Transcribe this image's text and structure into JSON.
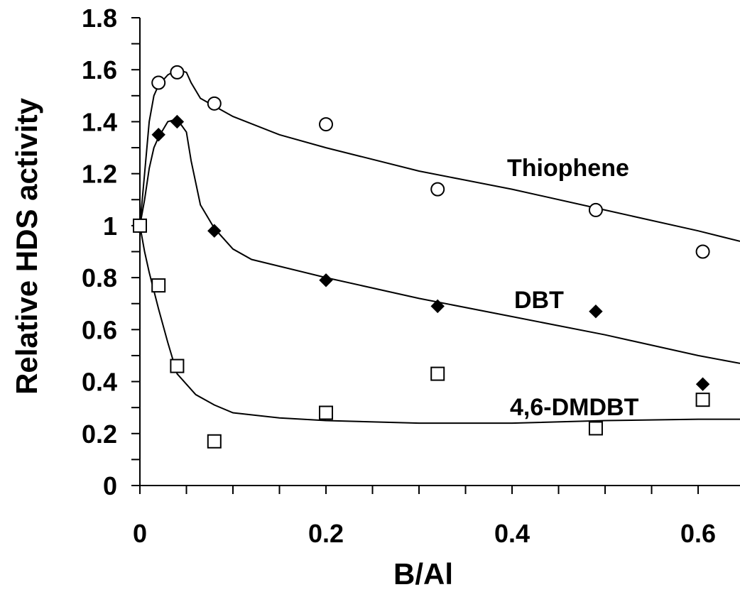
{
  "chart_data": {
    "type": "scatter",
    "xlabel": "B/Al",
    "ylabel": "Relative HDS activity",
    "xlim": [
      0,
      0.645
    ],
    "ylim": [
      0,
      1.8
    ],
    "x_ticks": [
      "0",
      "0.2",
      "0.4",
      "0.6"
    ],
    "y_ticks": [
      "0",
      "0.2",
      "0.4",
      "0.6",
      "0.8",
      "1",
      "1.2",
      "1.4",
      "1.6",
      "1.8"
    ],
    "grid": false,
    "series": [
      {
        "name": "Thiophene",
        "marker": "open-circle",
        "points": [
          [
            0.0,
            1.0
          ],
          [
            0.02,
            1.55
          ],
          [
            0.04,
            1.59
          ],
          [
            0.08,
            1.47
          ],
          [
            0.2,
            1.39
          ],
          [
            0.32,
            1.14
          ],
          [
            0.49,
            1.06
          ],
          [
            0.605,
            0.9
          ]
        ],
        "trend": [
          [
            0.0,
            1.0
          ],
          [
            0.005,
            1.2
          ],
          [
            0.01,
            1.4
          ],
          [
            0.015,
            1.5
          ],
          [
            0.02,
            1.54
          ],
          [
            0.03,
            1.58
          ],
          [
            0.04,
            1.6
          ],
          [
            0.05,
            1.59
          ],
          [
            0.055,
            1.55
          ],
          [
            0.065,
            1.49
          ],
          [
            0.08,
            1.46
          ],
          [
            0.1,
            1.42
          ],
          [
            0.15,
            1.35
          ],
          [
            0.2,
            1.3
          ],
          [
            0.3,
            1.21
          ],
          [
            0.4,
            1.14
          ],
          [
            0.5,
            1.06
          ],
          [
            0.6,
            0.98
          ],
          [
            0.645,
            0.94
          ]
        ]
      },
      {
        "name": "DBT",
        "marker": "filled-diamond",
        "points": [
          [
            0.0,
            1.0
          ],
          [
            0.02,
            1.35
          ],
          [
            0.04,
            1.4
          ],
          [
            0.08,
            0.98
          ],
          [
            0.2,
            0.79
          ],
          [
            0.32,
            0.69
          ],
          [
            0.49,
            0.67
          ],
          [
            0.605,
            0.39
          ]
        ],
        "trend": [
          [
            0.0,
            1.0
          ],
          [
            0.005,
            1.1
          ],
          [
            0.01,
            1.22
          ],
          [
            0.015,
            1.3
          ],
          [
            0.02,
            1.34
          ],
          [
            0.03,
            1.4
          ],
          [
            0.04,
            1.41
          ],
          [
            0.05,
            1.36
          ],
          [
            0.055,
            1.25
          ],
          [
            0.065,
            1.08
          ],
          [
            0.08,
            0.99
          ],
          [
            0.1,
            0.91
          ],
          [
            0.12,
            0.87
          ],
          [
            0.2,
            0.8
          ],
          [
            0.3,
            0.72
          ],
          [
            0.4,
            0.65
          ],
          [
            0.5,
            0.58
          ],
          [
            0.6,
            0.5
          ],
          [
            0.645,
            0.47
          ]
        ]
      },
      {
        "name": "4,6-DMDBT",
        "marker": "open-square",
        "points": [
          [
            0.0,
            1.0
          ],
          [
            0.02,
            0.77
          ],
          [
            0.04,
            0.46
          ],
          [
            0.08,
            0.17
          ],
          [
            0.2,
            0.28
          ],
          [
            0.32,
            0.43
          ],
          [
            0.49,
            0.22
          ],
          [
            0.605,
            0.33
          ]
        ],
        "trend": [
          [
            0.0,
            1.0
          ],
          [
            0.005,
            0.9
          ],
          [
            0.01,
            0.82
          ],
          [
            0.02,
            0.68
          ],
          [
            0.03,
            0.55
          ],
          [
            0.04,
            0.43
          ],
          [
            0.06,
            0.35
          ],
          [
            0.08,
            0.31
          ],
          [
            0.1,
            0.28
          ],
          [
            0.15,
            0.26
          ],
          [
            0.2,
            0.25
          ],
          [
            0.3,
            0.24
          ],
          [
            0.4,
            0.24
          ],
          [
            0.5,
            0.25
          ],
          [
            0.6,
            0.255
          ],
          [
            0.645,
            0.255
          ]
        ]
      }
    ]
  }
}
